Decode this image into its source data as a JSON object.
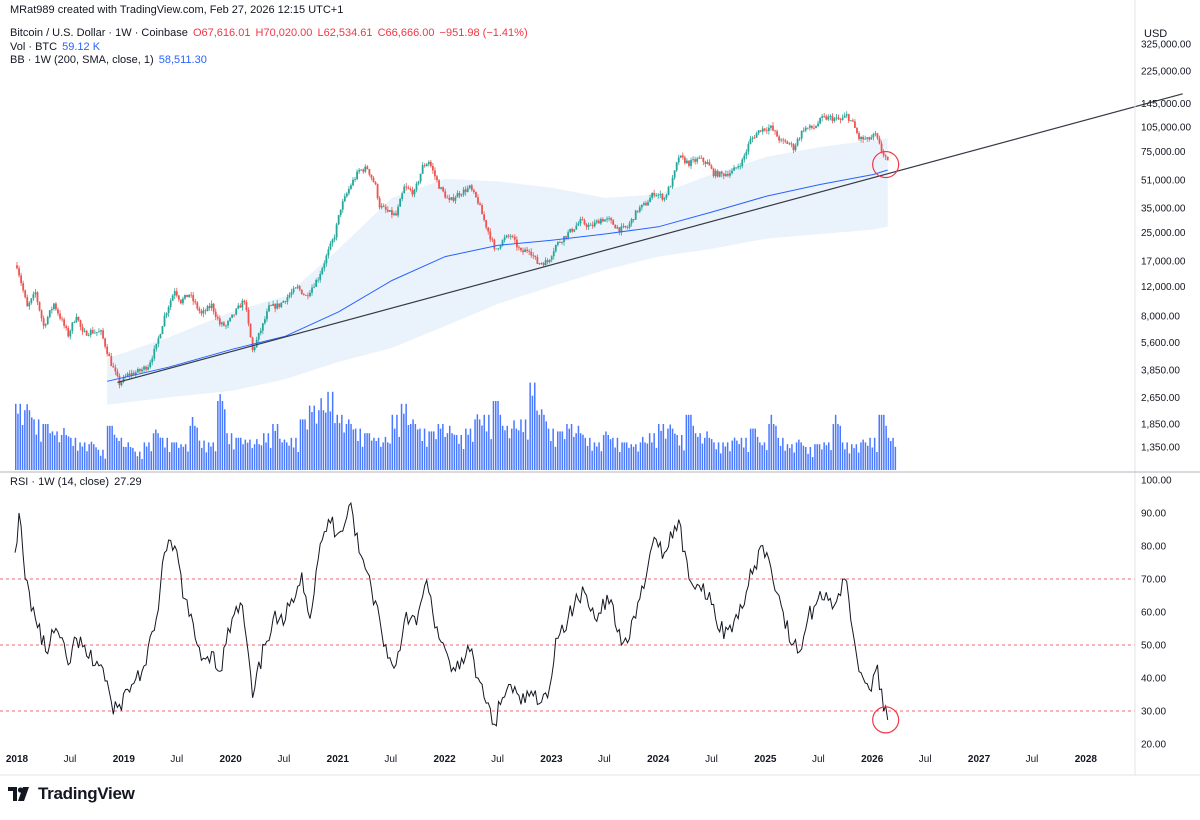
{
  "header": {
    "created_by": "MRat989 created with TradingView.com, Feb 27, 2026 12:15 UTC+1",
    "symbol": "Bitcoin / U.S. Dollar · 1W · Coinbase",
    "ohlc": {
      "open": "O67,616.01",
      "high": "H70,020.00",
      "low": "L62,534.61",
      "close": "C66,666.00",
      "change": "−951.98 (−1.41%)"
    },
    "vol_label": "Vol · BTC",
    "vol_value": "59.12 K",
    "bb_label": "BB · 1W (200, SMA, close, 1)",
    "bb_value": "58,511.30",
    "rsi_label": "RSI · 1W (14, close)",
    "rsi_value": "27.29",
    "currency": "USD"
  },
  "footer": {
    "logo_text": "TradingView"
  },
  "colors": {
    "up": "#26a69a",
    "down": "#ef5350",
    "volume": "#2962ff",
    "sma": "#2962ff",
    "band_fill": "#e3effa",
    "trendline": "#363a45",
    "rsi_line": "#131722",
    "rsi_level": "#f23645",
    "highlight_circle": "#f23645"
  },
  "chart_data": [
    {
      "type": "candlestick",
      "panel": "price",
      "scale": "log",
      "y_ticks": [
        "325,000.00",
        "225,000.00",
        "145,000.00",
        "105,000.00",
        "75,000.00",
        "51,000.00",
        "35,000.00",
        "25,000.00",
        "17,000.00",
        "12,000.00",
        "8,000.00",
        "5,600.00",
        "3,850.00",
        "2,650.00",
        "1,850.00",
        "1,350.00"
      ],
      "x_ticks": [
        "2018",
        "Jul",
        "2019",
        "Jul",
        "2020",
        "Jul",
        "2021",
        "Jul",
        "2022",
        "Jul",
        "2023",
        "Jul",
        "2024",
        "Jul",
        "2025",
        "Jul",
        "2026",
        "Jul",
        "2027",
        "Jul",
        "2028"
      ],
      "price_path": [
        [
          "2018-01-01",
          16000
        ],
        [
          "2018-02-05",
          9000
        ],
        [
          "2018-03-05",
          11000
        ],
        [
          "2018-04-02",
          7000
        ],
        [
          "2018-05-07",
          9500
        ],
        [
          "2018-06-25",
          6200
        ],
        [
          "2018-07-23",
          8200
        ],
        [
          "2018-08-13",
          6300
        ],
        [
          "2018-09-10",
          6500
        ],
        [
          "2018-10-15",
          6400
        ],
        [
          "2018-11-19",
          4200
        ],
        [
          "2018-12-17",
          3200
        ],
        [
          "2019-01-14",
          3600
        ],
        [
          "2019-02-25",
          3800
        ],
        [
          "2019-03-25",
          4100
        ],
        [
          "2019-04-22",
          5300
        ],
        [
          "2019-05-20",
          8000
        ],
        [
          "2019-06-24",
          11500
        ],
        [
          "2019-07-15",
          9800
        ],
        [
          "2019-08-12",
          10800
        ],
        [
          "2019-09-23",
          8200
        ],
        [
          "2019-10-28",
          9300
        ],
        [
          "2019-11-25",
          7200
        ],
        [
          "2019-12-16",
          7000
        ],
        [
          "2020-01-20",
          8600
        ],
        [
          "2020-02-17",
          10000
        ],
        [
          "2020-03-16",
          5000
        ],
        [
          "2020-04-20",
          7100
        ],
        [
          "2020-05-11",
          9000
        ],
        [
          "2020-06-15",
          9300
        ],
        [
          "2020-07-27",
          11000
        ],
        [
          "2020-08-17",
          11800
        ],
        [
          "2020-09-14",
          10500
        ],
        [
          "2020-10-26",
          13500
        ],
        [
          "2020-11-23",
          18000
        ],
        [
          "2020-12-21",
          24000
        ],
        [
          "2021-01-11",
          35000
        ],
        [
          "2021-02-15",
          48000
        ],
        [
          "2021-03-15",
          58000
        ],
        [
          "2021-04-12",
          60000
        ],
        [
          "2021-05-10",
          47000
        ],
        [
          "2021-05-24",
          36000
        ],
        [
          "2021-06-21",
          33000
        ],
        [
          "2021-07-19",
          31500
        ],
        [
          "2021-08-16",
          46000
        ],
        [
          "2021-09-20",
          43000
        ],
        [
          "2021-10-18",
          61000
        ],
        [
          "2021-11-08",
          66000
        ],
        [
          "2021-12-13",
          47000
        ],
        [
          "2022-01-17",
          38000
        ],
        [
          "2022-02-14",
          42000
        ],
        [
          "2022-03-28",
          46000
        ],
        [
          "2022-04-25",
          38000
        ],
        [
          "2022-05-16",
          29500
        ],
        [
          "2022-06-13",
          22000
        ],
        [
          "2022-06-20",
          19500
        ],
        [
          "2022-07-25",
          23000
        ],
        [
          "2022-08-15",
          24000
        ],
        [
          "2022-09-19",
          19000
        ],
        [
          "2022-10-17",
          20000
        ],
        [
          "2022-11-14",
          16500
        ],
        [
          "2022-12-19",
          16800
        ],
        [
          "2023-01-16",
          21000
        ],
        [
          "2023-02-13",
          23500
        ],
        [
          "2023-03-13",
          26000
        ],
        [
          "2023-04-10",
          29000
        ],
        [
          "2023-05-15",
          27000
        ],
        [
          "2023-06-19",
          30000
        ],
        [
          "2023-07-17",
          29500
        ],
        [
          "2023-08-21",
          26000
        ],
        [
          "2023-09-18",
          26800
        ],
        [
          "2023-10-23",
          34000
        ],
        [
          "2023-11-20",
          37000
        ],
        [
          "2023-12-18",
          43000
        ],
        [
          "2024-01-22",
          40000
        ],
        [
          "2024-02-19",
          51000
        ],
        [
          "2024-03-11",
          70000
        ],
        [
          "2024-04-15",
          64000
        ],
        [
          "2024-05-20",
          68000
        ],
        [
          "2024-06-17",
          64000
        ],
        [
          "2024-07-08",
          56000
        ],
        [
          "2024-08-05",
          55000
        ],
        [
          "2024-09-09",
          57000
        ],
        [
          "2024-10-14",
          66000
        ],
        [
          "2024-11-11",
          88000
        ],
        [
          "2024-12-16",
          102000
        ],
        [
          "2025-01-20",
          104000
        ],
        [
          "2025-02-24",
          86000
        ],
        [
          "2025-03-24",
          84000
        ],
        [
          "2025-04-07",
          79000
        ],
        [
          "2025-05-12",
          103000
        ],
        [
          "2025-06-16",
          104000
        ],
        [
          "2025-07-14",
          118000
        ],
        [
          "2025-08-11",
          119000
        ],
        [
          "2025-09-15",
          115000
        ],
        [
          "2025-10-06",
          123000
        ],
        [
          "2025-10-27",
          110000
        ],
        [
          "2025-11-17",
          90000
        ],
        [
          "2025-12-15",
          88000
        ],
        [
          "2026-01-12",
          94000
        ],
        [
          "2026-02-02",
          76000
        ],
        [
          "2026-02-23",
          66666
        ]
      ]
    },
    {
      "type": "line",
      "panel": "price",
      "series": [
        {
          "name": "BB · 1W (200, SMA, close, 1)",
          "x": [
            "2018-11-05",
            "2019-06-03",
            "2020-01-06",
            "2020-07-06",
            "2021-01-04",
            "2021-07-05",
            "2022-01-03",
            "2022-07-04",
            "2023-01-02",
            "2023-07-03",
            "2024-01-01",
            "2024-07-01",
            "2025-01-06",
            "2025-07-07",
            "2026-01-05",
            "2026-02-23"
          ],
          "values": [
            3300,
            4000,
            5100,
            6100,
            8500,
            13000,
            18000,
            21000,
            22500,
            24500,
            27000,
            33000,
            41000,
            48000,
            55000,
            58511
          ]
        }
      ],
      "band_upper": [
        4500,
        6000,
        8500,
        10500,
        20000,
        40000,
        52000,
        50000,
        46000,
        40000,
        42000,
        55000,
        70000,
        80000,
        88000,
        90000
      ],
      "band_lower": [
        2400,
        2650,
        2900,
        3400,
        4300,
        5200,
        7000,
        9500,
        12000,
        15000,
        18000,
        20000,
        23000,
        24500,
        26000,
        27000
      ]
    },
    {
      "type": "line",
      "panel": "price",
      "annotation": "trendline",
      "x": [
        "2018-12-10",
        "2028-11-27"
      ],
      "values": [
        3250,
        165000
      ]
    },
    {
      "type": "bar",
      "panel": "volume",
      "levels": [
        0.72,
        0.65,
        0.55,
        0.5,
        0.42,
        0.38,
        0.35,
        0.3,
        0.28,
        0.22,
        0.48,
        0.35,
        0.25,
        0.2,
        0.3,
        0.4,
        0.35,
        0.3,
        0.28,
        0.48,
        0.32,
        0.3,
        0.75,
        0.4,
        0.35,
        0.33,
        0.28,
        0.4,
        0.5,
        0.3,
        0.35,
        0.55,
        0.7,
        0.65,
        0.85,
        0.6,
        0.5,
        0.45,
        0.4,
        0.35,
        0.3,
        0.6,
        0.72,
        0.5,
        0.45,
        0.42,
        0.5,
        0.4,
        0.38,
        0.45,
        0.55,
        0.6,
        0.75,
        0.48,
        0.45,
        0.55,
        0.95,
        0.6,
        0.45,
        0.42,
        0.5,
        0.4,
        0.35,
        0.3,
        0.38,
        0.35,
        0.3,
        0.28,
        0.3,
        0.4,
        0.5,
        0.45,
        0.38,
        0.6,
        0.4,
        0.35,
        0.3,
        0.3,
        0.32,
        0.35,
        0.45,
        0.3,
        0.5,
        0.35,
        0.28,
        0.3,
        0.25,
        0.28,
        0.3,
        0.5,
        0.3,
        0.28,
        0.3,
        0.35,
        0.6,
        0.35
      ]
    },
    {
      "type": "line",
      "panel": "rsi",
      "ylim": [
        20,
        100
      ],
      "y_ticks": [
        "100.00",
        "90.00",
        "80.00",
        "70.00",
        "60.00",
        "50.00",
        "40.00",
        "30.00",
        "20.00"
      ],
      "levels": [
        70,
        50,
        30
      ],
      "series": [
        {
          "name": "RSI · 1W (14, close)",
          "x": [
            "2017-12-25",
            "2018-01-08",
            "2018-01-29",
            "2018-03-05",
            "2018-04-09",
            "2018-05-14",
            "2018-06-25",
            "2018-07-23",
            "2018-09-03",
            "2018-10-15",
            "2018-11-12",
            "2018-11-26",
            "2018-12-17",
            "2019-01-28",
            "2019-03-18",
            "2019-04-22",
            "2019-05-20",
            "2019-06-24",
            "2019-07-29",
            "2019-09-02",
            "2019-09-30",
            "2019-10-28",
            "2019-11-25",
            "2020-01-06",
            "2020-02-10",
            "2020-03-16",
            "2020-04-27",
            "2020-05-25",
            "2020-06-29",
            "2020-07-27",
            "2020-08-31",
            "2020-09-28",
            "2020-10-26",
            "2020-11-30",
            "2021-01-04",
            "2021-02-15",
            "2021-03-15",
            "2021-04-12",
            "2021-05-24",
            "2021-06-21",
            "2021-07-19",
            "2021-08-23",
            "2021-09-27",
            "2021-10-25",
            "2021-11-08",
            "2021-12-13",
            "2022-01-24",
            "2022-02-28",
            "2022-03-28",
            "2022-04-25",
            "2022-05-16",
            "2022-06-20",
            "2022-07-18",
            "2022-08-15",
            "2022-09-19",
            "2022-10-24",
            "2022-11-14",
            "2022-12-19",
            "2023-01-16",
            "2023-02-27",
            "2023-03-20",
            "2023-04-24",
            "2023-05-29",
            "2023-06-26",
            "2023-07-31",
            "2023-08-28",
            "2023-09-25",
            "2023-10-30",
            "2023-11-27",
            "2023-12-25",
            "2024-01-22",
            "2024-02-26",
            "2024-03-11",
            "2024-04-15",
            "2024-05-20",
            "2024-06-24",
            "2024-07-29",
            "2024-09-02",
            "2024-09-30",
            "2024-10-28",
            "2024-11-25",
            "2024-12-16",
            "2025-01-13",
            "2025-02-24",
            "2025-03-31",
            "2025-04-28",
            "2025-05-26",
            "2025-06-30",
            "2025-07-28",
            "2025-08-25",
            "2025-09-29",
            "2025-10-13",
            "2025-11-10",
            "2025-12-01",
            "2025-12-29",
            "2026-01-19",
            "2026-02-09",
            "2026-02-23"
          ],
          "values": [
            78,
            90,
            70,
            58,
            48,
            55,
            44,
            52,
            46,
            44,
            36,
            29,
            32,
            38,
            44,
            58,
            78,
            80,
            64,
            52,
            46,
            48,
            42,
            58,
            62,
            34,
            50,
            58,
            56,
            64,
            72,
            58,
            76,
            88,
            84,
            93,
            78,
            72,
            58,
            46,
            44,
            60,
            56,
            68,
            66,
            52,
            42,
            46,
            48,
            40,
            34,
            26,
            34,
            38,
            32,
            36,
            32,
            34,
            52,
            58,
            62,
            66,
            58,
            64,
            62,
            50,
            52,
            64,
            74,
            82,
            78,
            86,
            88,
            70,
            68,
            66,
            54,
            56,
            58,
            66,
            74,
            80,
            76,
            62,
            50,
            48,
            58,
            64,
            66,
            62,
            70,
            64,
            46,
            40,
            36,
            44,
            30,
            27.29
          ]
        }
      ]
    }
  ]
}
